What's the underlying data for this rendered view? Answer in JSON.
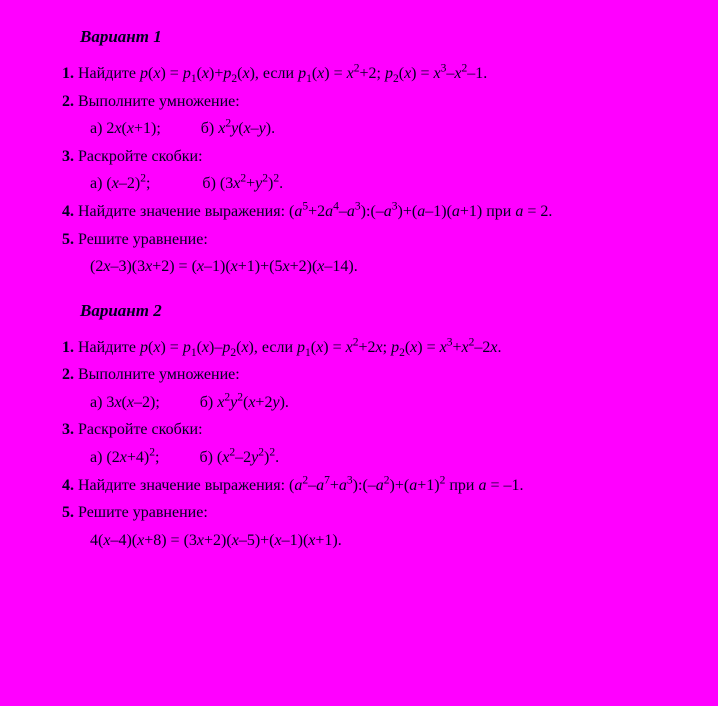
{
  "background_color": "#ff00ff",
  "text_color": "#000020",
  "font_family": "Times New Roman",
  "base_fontsize": 16,
  "variants": [
    {
      "title": "Вариант 1",
      "items": [
        {
          "num": "1.",
          "text_html": "Найдите <span class='it'>p</span>(<span class='it'>x</span>) = <span class='it'>p</span><sub class='s'>1</sub>(<span class='it'>x</span>)+<span class='it'>p</span><sub class='s'>2</sub>(<span class='it'>x</span>), если <span class='it'>p</span><sub class='s'>1</sub>(<span class='it'>x</span>) = <span class='it'>x</span><sup>2</sup>+2; <span class='it'>p</span><sub class='s'>2</sub>(<span class='it'>x</span>) = <span class='it'>x</span><sup>3</sup>–<span class='it'>x</span><sup>2</sup>–1."
        },
        {
          "num": "2.",
          "text_html": "Выполните умножение:",
          "sub_html": "а) 2<span class='it'>x</span>(<span class='it'>x</span>+1);<span class='gap'></span>б) <span class='it'>x</span><sup>2</sup><span class='it'>y</span>(<span class='it'>x</span>–<span class='it'>y</span>)."
        },
        {
          "num": "3.",
          "text_html": "Раскройте скобки:",
          "sub_html": "а) (<span class='it'>x</span>–2)<sup>2</sup>;<span class='gap'></span>&nbsp;&nbsp;&nbsp;б) (3<span class='it'>x</span><sup>2</sup>+<span class='it'>y</span><sup>2</sup>)<sup>2</sup>."
        },
        {
          "num": "4.",
          "wide": true,
          "text_html": "Найдите значение выражения: (<span class='it'>a</span><sup>5</sup>+2<span class='it'>a</span><sup>4</sup>–<span class='it'>a</span><sup>3</sup>):(–<span class='it'>a</span><sup>3</sup>)+(<span class='it'>a</span>–1)(<span class='it'>a</span>+1) при <span class='it'>a</span> = 2."
        },
        {
          "num": "5.",
          "text_html": "Решите уравнение:",
          "sub_html": "(2<span class='it'>x</span>–3)(3<span class='it'>x</span>+2) = (<span class='it'>x</span>–1)(<span class='it'>x</span>+1)+(5<span class='it'>x</span>+2)(<span class='it'>x</span>–14)."
        }
      ]
    },
    {
      "title": "Вариант 2",
      "items": [
        {
          "num": "1.",
          "text_html": "Найдите <span class='it'>p</span>(<span class='it'>x</span>) = <span class='it'>p</span><sub class='s'>1</sub>(<span class='it'>x</span>)–<span class='it'>p</span><sub class='s'>2</sub>(<span class='it'>x</span>), если <span class='it'>p</span><sub class='s'>1</sub>(<span class='it'>x</span>) = <span class='it'>x</span><sup>2</sup>+2<span class='it'>x</span>; <span class='it'>p</span><sub class='s'>2</sub>(<span class='it'>x</span>) = <span class='it'>x</span><sup>3</sup>+<span class='it'>x</span><sup>2</sup>–2<span class='it'>x</span>."
        },
        {
          "num": "2.",
          "text_html": "Выполните умножение:",
          "sub_html": "а) 3<span class='it'>x</span>(<span class='it'>x</span>–2);<span class='gap'></span>б) <span class='it'>x</span><sup>2</sup><span class='it'>y</span><sup>2</sup>(<span class='it'>x</span>+2<span class='it'>y</span>)."
        },
        {
          "num": "3.",
          "text_html": "Раскройте скобки:",
          "sub_html": "а) (2<span class='it'>x</span>+4)<sup>2</sup>;<span class='gap'></span>б) (<span class='it'>x</span><sup>2</sup>–2<span class='it'>y</span><sup>2</sup>)<sup>2</sup>."
        },
        {
          "num": "4.",
          "wide": true,
          "text_html": "Найдите значение выражения: (<span class='it'>a</span><sup>2</sup>–<span class='it'>a</span><sup>7</sup>+<span class='it'>a</span><sup>3</sup>):(–<span class='it'>a</span><sup>2</sup>)+(<span class='it'>a</span>+1)<sup>2</sup> при <span class='it'>a</span> = –1."
        },
        {
          "num": "5.",
          "text_html": "Решите уравнение:",
          "sub_html": "4(<span class='it'>x</span>–4)(<span class='it'>x</span>+8) = (3<span class='it'>x</span>+2)(<span class='it'>x</span>–5)+(<span class='it'>x</span>–1)(<span class='it'>x</span>+1)."
        }
      ]
    }
  ]
}
